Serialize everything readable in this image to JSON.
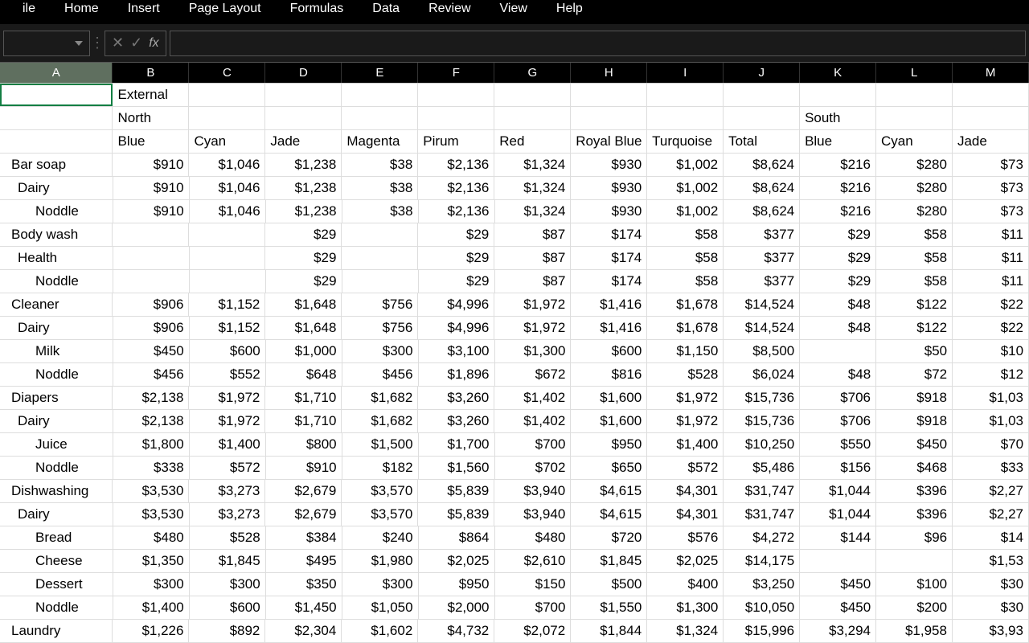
{
  "ribbon": {
    "tabs": [
      "ile",
      "Home",
      "Insert",
      "Page Layout",
      "Formulas",
      "Data",
      "Review",
      "View",
      "Help"
    ]
  },
  "formula_bar": {
    "name_box": "",
    "cancel": "✕",
    "enter": "✓",
    "fx": "fx",
    "formula": ""
  },
  "columns": [
    "A",
    "B",
    "C",
    "D",
    "E",
    "F",
    "G",
    "H",
    "I",
    "J",
    "K",
    "L",
    "M"
  ],
  "col_widths": {
    "A": 142,
    "B": 96,
    "C": 96,
    "D": 96,
    "E": 96,
    "F": 96,
    "G": 96,
    "H": 96,
    "I": 96,
    "J": 96,
    "K": 96,
    "L": 96,
    "M": 96
  },
  "selected_cell": "A1",
  "rows": [
    {
      "cells": [
        "",
        "External",
        "",
        "",
        "",
        "",
        "",
        "",
        "",
        "",
        "",
        "",
        ""
      ],
      "align": "l",
      "indent": 0
    },
    {
      "cells": [
        "",
        "North",
        "",
        "",
        "",
        "",
        "",
        "",
        "",
        "",
        "South",
        "",
        ""
      ],
      "align": "l",
      "indent": 0
    },
    {
      "cells": [
        "",
        "Blue",
        "Cyan",
        "Jade",
        "Magenta",
        "Pirum",
        "Red",
        "Royal Blue",
        "Turquoise",
        "Total",
        "Blue",
        "Cyan",
        "Jade"
      ],
      "align": "l",
      "indent": 0
    },
    {
      "cells": [
        "Bar soap",
        "$910",
        "$1,046",
        "$1,238",
        "$38",
        "$2,136",
        "$1,324",
        "$930",
        "$1,002",
        "$8,624",
        "$216",
        "$280",
        "$73"
      ],
      "align": "r",
      "indent": 0
    },
    {
      "cells": [
        "Dairy",
        "$910",
        "$1,046",
        "$1,238",
        "$38",
        "$2,136",
        "$1,324",
        "$930",
        "$1,002",
        "$8,624",
        "$216",
        "$280",
        "$73"
      ],
      "align": "r",
      "indent": 1
    },
    {
      "cells": [
        "Noddle",
        "$910",
        "$1,046",
        "$1,238",
        "$38",
        "$2,136",
        "$1,324",
        "$930",
        "$1,002",
        "$8,624",
        "$216",
        "$280",
        "$73"
      ],
      "align": "r",
      "indent": 2
    },
    {
      "cells": [
        "Body wash",
        "",
        "",
        "$29",
        "",
        "$29",
        "$87",
        "$174",
        "$58",
        "$377",
        "$29",
        "$58",
        "$11"
      ],
      "align": "r",
      "indent": 0
    },
    {
      "cells": [
        "Health",
        "",
        "",
        "$29",
        "",
        "$29",
        "$87",
        "$174",
        "$58",
        "$377",
        "$29",
        "$58",
        "$11"
      ],
      "align": "r",
      "indent": 1
    },
    {
      "cells": [
        "Noddle",
        "",
        "",
        "$29",
        "",
        "$29",
        "$87",
        "$174",
        "$58",
        "$377",
        "$29",
        "$58",
        "$11"
      ],
      "align": "r",
      "indent": 2
    },
    {
      "cells": [
        "Cleaner",
        "$906",
        "$1,152",
        "$1,648",
        "$756",
        "$4,996",
        "$1,972",
        "$1,416",
        "$1,678",
        "$14,524",
        "$48",
        "$122",
        "$22"
      ],
      "align": "r",
      "indent": 0
    },
    {
      "cells": [
        "Dairy",
        "$906",
        "$1,152",
        "$1,648",
        "$756",
        "$4,996",
        "$1,972",
        "$1,416",
        "$1,678",
        "$14,524",
        "$48",
        "$122",
        "$22"
      ],
      "align": "r",
      "indent": 1
    },
    {
      "cells": [
        "Milk",
        "$450",
        "$600",
        "$1,000",
        "$300",
        "$3,100",
        "$1,300",
        "$600",
        "$1,150",
        "$8,500",
        "",
        "$50",
        "$10"
      ],
      "align": "r",
      "indent": 2
    },
    {
      "cells": [
        "Noddle",
        "$456",
        "$552",
        "$648",
        "$456",
        "$1,896",
        "$672",
        "$816",
        "$528",
        "$6,024",
        "$48",
        "$72",
        "$12"
      ],
      "align": "r",
      "indent": 2
    },
    {
      "cells": [
        "Diapers",
        "$2,138",
        "$1,972",
        "$1,710",
        "$1,682",
        "$3,260",
        "$1,402",
        "$1,600",
        "$1,972",
        "$15,736",
        "$706",
        "$918",
        "$1,03"
      ],
      "align": "r",
      "indent": 0
    },
    {
      "cells": [
        "Dairy",
        "$2,138",
        "$1,972",
        "$1,710",
        "$1,682",
        "$3,260",
        "$1,402",
        "$1,600",
        "$1,972",
        "$15,736",
        "$706",
        "$918",
        "$1,03"
      ],
      "align": "r",
      "indent": 1
    },
    {
      "cells": [
        "Juice",
        "$1,800",
        "$1,400",
        "$800",
        "$1,500",
        "$1,700",
        "$700",
        "$950",
        "$1,400",
        "$10,250",
        "$550",
        "$450",
        "$70"
      ],
      "align": "r",
      "indent": 2
    },
    {
      "cells": [
        "Noddle",
        "$338",
        "$572",
        "$910",
        "$182",
        "$1,560",
        "$702",
        "$650",
        "$572",
        "$5,486",
        "$156",
        "$468",
        "$33"
      ],
      "align": "r",
      "indent": 2
    },
    {
      "cells": [
        "Dishwashing",
        "$3,530",
        "$3,273",
        "$2,679",
        "$3,570",
        "$5,839",
        "$3,940",
        "$4,615",
        "$4,301",
        "$31,747",
        "$1,044",
        "$396",
        "$2,27"
      ],
      "align": "r",
      "indent": 0
    },
    {
      "cells": [
        "Dairy",
        "$3,530",
        "$3,273",
        "$2,679",
        "$3,570",
        "$5,839",
        "$3,940",
        "$4,615",
        "$4,301",
        "$31,747",
        "$1,044",
        "$396",
        "$2,27"
      ],
      "align": "r",
      "indent": 1
    },
    {
      "cells": [
        "Bread",
        "$480",
        "$528",
        "$384",
        "$240",
        "$864",
        "$480",
        "$720",
        "$576",
        "$4,272",
        "$144",
        "$96",
        "$14"
      ],
      "align": "r",
      "indent": 2
    },
    {
      "cells": [
        "Cheese",
        "$1,350",
        "$1,845",
        "$495",
        "$1,980",
        "$2,025",
        "$2,610",
        "$1,845",
        "$2,025",
        "$14,175",
        "",
        "",
        "$1,53"
      ],
      "align": "r",
      "indent": 2
    },
    {
      "cells": [
        "Dessert",
        "$300",
        "$300",
        "$350",
        "$300",
        "$950",
        "$150",
        "$500",
        "$400",
        "$3,250",
        "$450",
        "$100",
        "$30"
      ],
      "align": "r",
      "indent": 2
    },
    {
      "cells": [
        "Noddle",
        "$1,400",
        "$600",
        "$1,450",
        "$1,050",
        "$2,000",
        "$700",
        "$1,550",
        "$1,300",
        "$10,050",
        "$450",
        "$200",
        "$30"
      ],
      "align": "r",
      "indent": 2
    },
    {
      "cells": [
        "Laundry",
        "$1,226",
        "$892",
        "$2,304",
        "$1,602",
        "$4,732",
        "$2,072",
        "$1,844",
        "$1,324",
        "$15,996",
        "$3,294",
        "$1,958",
        "$3,93"
      ],
      "align": "r",
      "indent": 0
    }
  ],
  "colors": {
    "ribbon_bg": "#000000",
    "formula_bg": "#1a1a1a",
    "cell_border": "#dddddd",
    "selection_border": "#137e43",
    "text": "#000000"
  }
}
